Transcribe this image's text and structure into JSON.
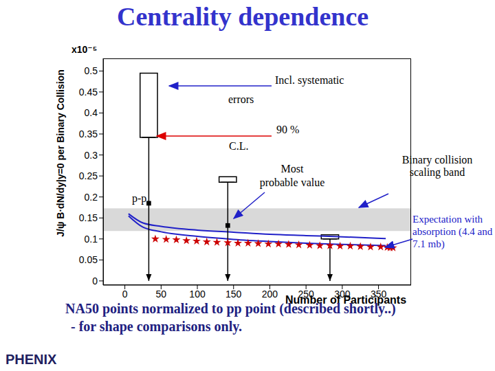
{
  "chart_data": {
    "type": "scatter",
    "title": "Centrality dependence",
    "x_label": "Number of Participants",
    "y_label": "J/ψ B·dN/dy|y=0 per Binary Collision",
    "y_multiplier": "x10⁻⁵",
    "xlim": [
      -30,
      395
    ],
    "ylim": [
      -0.01,
      0.53
    ],
    "xticks": [
      0,
      50,
      100,
      150,
      200,
      250,
      300,
      350
    ],
    "yticks": [
      0,
      0.05,
      0.1,
      0.15,
      0.2,
      0.25,
      0.3,
      0.35,
      0.4,
      0.45,
      0.5
    ],
    "grid": false,
    "band": {
      "label": "Binary collision scaling band",
      "color": "#d9d9d9",
      "y": [
        0.119,
        0.173
      ]
    },
    "pp": {
      "label": "p-p",
      "x": 33,
      "y": 0.185,
      "marker": "square",
      "color": "#000000"
    },
    "phenix": {
      "x": [
        33,
        142,
        283
      ],
      "most_probable": [
        null,
        0.132,
        null
      ],
      "cl90": [
        0.342,
        0.235,
        0.1
      ],
      "incl_systematic": [
        0.495,
        0.248,
        0.11
      ],
      "marker": "square",
      "color": "#000000"
    },
    "series": [
      {
        "type": "line",
        "color": "#2020c8",
        "x": [
          5,
          25,
          50,
          100,
          150,
          200,
          250,
          300,
          360
        ],
        "values": [
          0.16,
          0.138,
          0.13,
          0.121,
          0.116,
          0.111,
          0.108,
          0.105,
          0.101
        ]
      },
      {
        "type": "line",
        "color": "#2020c8",
        "x": [
          5,
          25,
          50,
          100,
          150,
          200,
          250,
          300,
          360
        ],
        "values": [
          0.155,
          0.128,
          0.117,
          0.106,
          0.099,
          0.094,
          0.09,
          0.087,
          0.084
        ]
      },
      {
        "type": "scatter",
        "marker": "star",
        "color": "#cc0000",
        "x": [
          42,
          57,
          71,
          85,
          99,
          113,
          127,
          142,
          156,
          170,
          184,
          198,
          212,
          226,
          240,
          255,
          269,
          283,
          297,
          311,
          325,
          339,
          353,
          362,
          366,
          370
        ],
        "values": [
          0.1,
          0.099,
          0.098,
          0.096,
          0.095,
          0.093,
          0.092,
          0.091,
          0.09,
          0.09,
          0.089,
          0.088,
          0.088,
          0.087,
          0.086,
          0.085,
          0.084,
          0.084,
          0.083,
          0.083,
          0.082,
          0.081,
          0.081,
          0.08,
          0.079,
          0.079
        ]
      }
    ],
    "annotations": {
      "systematic": "Incl. systematic errors",
      "cl": "90 % C.L.",
      "most_probable": "Most probable value",
      "expectation": "Expectation with absorption (4.4 and 7.1 mb)"
    },
    "footer": [
      "NA50 points normalized to pp point (described shortly..)",
      "- for shape comparisons only."
    ],
    "logo": "PHENIX"
  }
}
